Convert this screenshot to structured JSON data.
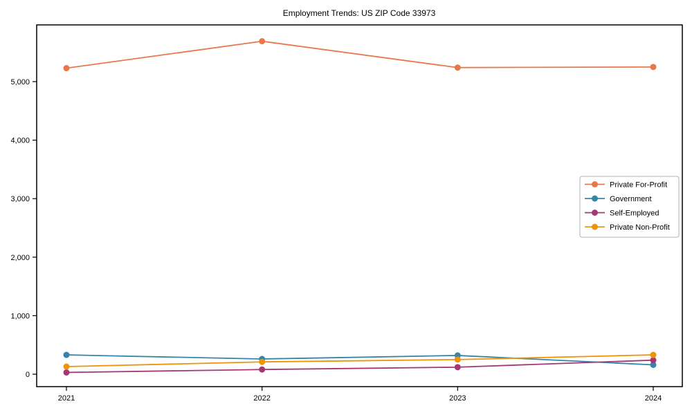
{
  "chart_data": {
    "type": "line",
    "title": "Employment Trends: US ZIP Code 33973",
    "xlabel": "",
    "ylabel": "",
    "categories": [
      "2021",
      "2022",
      "2023",
      "2024"
    ],
    "x": [
      2021,
      2022,
      2023,
      2024
    ],
    "series": [
      {
        "name": "Private For-Profit",
        "color": "#e8784b",
        "values": [
          5230,
          5690,
          5240,
          5250
        ]
      },
      {
        "name": "Government",
        "color": "#3585a8",
        "values": [
          330,
          260,
          320,
          160
        ]
      },
      {
        "name": "Self-Employed",
        "color": "#a43776",
        "values": [
          30,
          80,
          120,
          240
        ]
      },
      {
        "name": "Private Non-Profit",
        "color": "#ee9405",
        "values": [
          130,
          210,
          250,
          330
        ]
      }
    ],
    "yticks": [
      0,
      1000,
      2000,
      3000,
      4000,
      5000
    ],
    "ytick_labels": [
      "0",
      "1,000",
      "2,000",
      "3,000",
      "4,000",
      "5,000"
    ],
    "ylim": [
      0,
      5970
    ],
    "grid": false,
    "marker": "circle",
    "legend_position": "right",
    "legend_border_color": "#b3b3b3",
    "axis_color": "#000000",
    "background_color": "#ffffff"
  }
}
